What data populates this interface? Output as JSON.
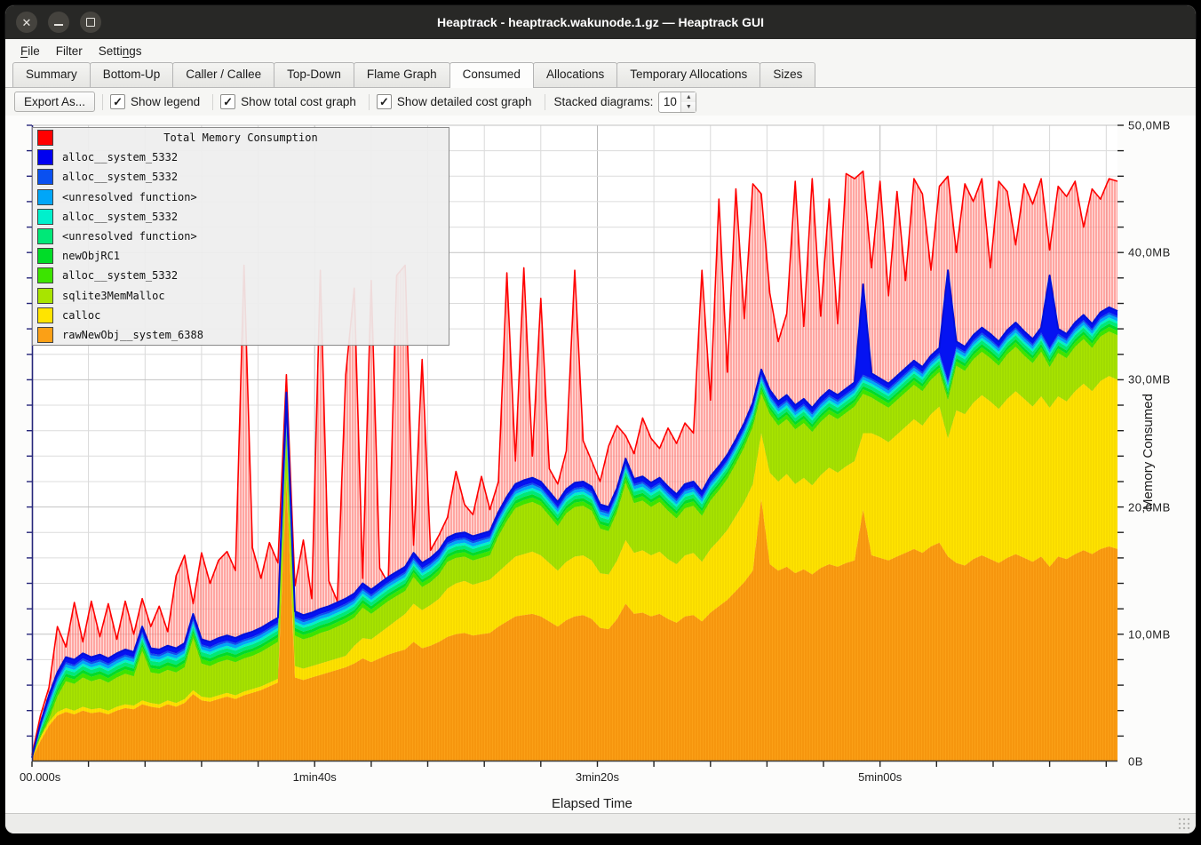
{
  "window": {
    "title": "Heaptrack - heaptrack.wakunode.1.gz — Heaptrack GUI",
    "buttons": [
      "close",
      "minimize",
      "maximize"
    ]
  },
  "menu": {
    "items": [
      {
        "label": "File",
        "accel_index": 0
      },
      {
        "label": "Filter",
        "accel_index": -1
      },
      {
        "label": "Settings",
        "accel_index": 5
      }
    ]
  },
  "tabs": [
    {
      "label": "Summary",
      "active": false
    },
    {
      "label": "Bottom-Up",
      "active": false
    },
    {
      "label": "Caller / Callee",
      "active": false
    },
    {
      "label": "Top-Down",
      "active": false
    },
    {
      "label": "Flame Graph",
      "active": false
    },
    {
      "label": "Consumed",
      "active": true
    },
    {
      "label": "Allocations",
      "active": false
    },
    {
      "label": "Temporary Allocations",
      "active": false
    },
    {
      "label": "Sizes",
      "active": false
    }
  ],
  "toolbar": {
    "export_label": "Export As...",
    "checkboxes": [
      {
        "label": "Show legend",
        "checked": true
      },
      {
        "label": "Show total cost graph",
        "checked": true
      },
      {
        "label": "Show detailed cost graph",
        "checked": true
      }
    ],
    "spinner_label": "Stacked diagrams:",
    "spinner_value": "10"
  },
  "chart_data": {
    "type": "area",
    "title": "Total Memory Consumption",
    "xlabel": "Elapsed Time",
    "ylabel": "Memory Consumed",
    "x_tick_labels": [
      "00.000s",
      "1min40s",
      "3min20s",
      "5min00s"
    ],
    "x_tick_seconds": [
      0,
      100,
      200,
      300
    ],
    "y_tick_labels": [
      "0B",
      "10,0MB",
      "20,0MB",
      "30,0MB",
      "40,0MB",
      "50,0MB"
    ],
    "y_tick_mb": [
      0,
      10,
      20,
      30,
      40,
      50
    ],
    "ylim_mb": [
      0,
      50
    ],
    "xlim_seconds": [
      0,
      384
    ],
    "minor_grid_seconds": 20,
    "minor_grid_mb": 2,
    "legend_position": "top-left",
    "grid": true,
    "unit": "MB",
    "t_step_seconds": 3,
    "legend": [
      {
        "label": "Total Memory Consumption",
        "color": "#ff0000",
        "is_title": true
      },
      {
        "label": "alloc__system_5332",
        "color": "#0000f0"
      },
      {
        "label": "alloc__system_5332",
        "color": "#0a50f0"
      },
      {
        "label": "<unresolved function>",
        "color": "#00a6f8"
      },
      {
        "label": "alloc__system_5332",
        "color": "#00f0cc"
      },
      {
        "label": "<unresolved function>",
        "color": "#00e878"
      },
      {
        "label": "newObjRC1",
        "color": "#00dc28"
      },
      {
        "label": "alloc__system_5332",
        "color": "#3ce400"
      },
      {
        "label": "sqlite3MemMalloc",
        "color": "#a8e400"
      },
      {
        "label": "calloc",
        "color": "#ffe400"
      },
      {
        "label": "rawNewObj__system_6388",
        "color": "#fba016"
      }
    ],
    "thin_bands": [
      {
        "name": "alloc__system_5332_green",
        "color": "#3ce400",
        "thickness": 0.35
      },
      {
        "name": "newObjRC1",
        "color": "#00dc28",
        "thickness": 0.25
      },
      {
        "name": "unresolved_spring",
        "color": "#00e878",
        "thickness": 0.3
      },
      {
        "name": "alloc__system_5332_cyan",
        "color": "#00f0cc",
        "thickness": 0.2
      },
      {
        "name": "unresolved_sky",
        "color": "#00a6f8",
        "thickness": 0.25
      },
      {
        "name": "alloc__system_5332_royal",
        "color": "#0a50f0",
        "thickness": 0.15
      }
    ],
    "top_band_color": "#0513f2",
    "top_line_color": "#0010d8",
    "red_line_color": "#ff0000",
    "series": {
      "orange_top_mb": [
        0.2,
        1.6,
        2.8,
        3.6,
        3.9,
        3.7,
        4.0,
        3.8,
        3.9,
        3.7,
        4.0,
        4.2,
        4.1,
        4.5,
        4.3,
        4.2,
        4.5,
        4.3,
        4.6,
        5.3,
        4.8,
        4.7,
        4.9,
        5.1,
        4.9,
        5.2,
        5.4,
        5.6,
        5.9,
        6.2,
        22.0,
        6.6,
        6.4,
        6.6,
        6.8,
        7.0,
        7.2,
        7.4,
        7.7,
        8.1,
        7.8,
        8.1,
        8.4,
        8.6,
        8.8,
        9.4,
        8.9,
        9.1,
        9.4,
        9.8,
        10.0,
        10.1,
        9.9,
        10.0,
        10.1,
        10.6,
        11.0,
        11.4,
        11.5,
        11.6,
        11.4,
        11.0,
        10.6,
        11.1,
        11.4,
        11.5,
        11.2,
        10.5,
        10.4,
        11.2,
        12.4,
        11.6,
        11.7,
        11.4,
        11.6,
        11.2,
        10.9,
        11.4,
        11.5,
        11.0,
        11.7,
        12.2,
        12.7,
        13.4,
        14.1,
        15.0,
        20.6,
        15.5,
        15.0,
        15.3,
        14.8,
        15.1,
        14.7,
        15.2,
        15.5,
        15.3,
        15.6,
        15.8,
        19.8,
        16.2,
        16.0,
        15.8,
        16.1,
        16.4,
        16.7,
        16.4,
        16.9,
        17.2,
        16.1,
        15.6,
        15.4,
        15.9,
        16.2,
        15.9,
        15.6,
        16.0,
        16.3,
        16.0,
        15.7,
        16.1,
        15.3,
        16.1,
        15.9,
        16.3,
        16.6,
        16.3,
        16.7,
        16.9,
        16.7
      ],
      "yellow_top_mb": [
        0.3,
        1.9,
        3.1,
        3.9,
        4.2,
        4.0,
        4.3,
        4.1,
        4.2,
        4.0,
        4.3,
        4.5,
        4.4,
        4.8,
        4.6,
        4.5,
        4.8,
        4.6,
        4.9,
        5.6,
        5.1,
        5.0,
        5.2,
        5.4,
        5.2,
        5.5,
        5.7,
        5.9,
        6.2,
        6.5,
        22.4,
        7.5,
        7.3,
        7.5,
        7.7,
        7.9,
        8.1,
        8.3,
        9.1,
        9.7,
        9.6,
        10.1,
        10.6,
        11.1,
        11.6,
        12.4,
        11.9,
        12.3,
        12.8,
        13.6,
        14.0,
        14.2,
        13.9,
        14.1,
        14.3,
        14.9,
        15.5,
        16.1,
        16.3,
        16.5,
        16.2,
        15.6,
        15.0,
        15.7,
        16.1,
        16.2,
        15.8,
        14.8,
        14.7,
        15.8,
        17.4,
        16.4,
        16.6,
        16.2,
        16.5,
        15.9,
        15.5,
        16.2,
        16.4,
        15.7,
        16.7,
        17.4,
        18.2,
        19.3,
        20.4,
        21.8,
        25.8,
        22.7,
        22.0,
        22.6,
        21.8,
        22.3,
        21.7,
        22.5,
        23.1,
        22.7,
        23.2,
        23.6,
        25.8,
        25.8,
        25.5,
        25.1,
        25.7,
        26.3,
        26.9,
        26.4,
        27.3,
        27.9,
        25.4,
        27.6,
        27.3,
        28.2,
        28.8,
        28.3,
        27.7,
        28.5,
        29.1,
        28.5,
        27.9,
        28.7,
        27.8,
        28.7,
        28.3,
        29.1,
        29.7,
        29.1,
        29.9,
        30.3,
        30.0
      ],
      "sqlite_top_mb": [
        0.4,
        1.9,
        3.3,
        5.1,
        6.3,
        6.1,
        6.6,
        6.3,
        6.5,
        6.2,
        6.6,
        6.9,
        6.7,
        8.7,
        7.0,
        6.9,
        7.2,
        7.0,
        7.4,
        9.7,
        7.7,
        7.5,
        7.8,
        8.0,
        7.8,
        8.1,
        8.3,
        8.6,
        9.0,
        9.4,
        25.2,
        9.9,
        9.6,
        9.8,
        10.1,
        10.3,
        10.6,
        10.9,
        11.3,
        12.1,
        11.6,
        12.1,
        12.6,
        13.0,
        13.4,
        14.5,
        13.7,
        14.1,
        14.7,
        15.7,
        16.0,
        16.1,
        15.8,
        16.0,
        16.2,
        17.7,
        18.9,
        19.9,
        20.2,
        20.4,
        20.1,
        19.3,
        18.5,
        19.5,
        20.0,
        20.1,
        19.7,
        18.3,
        18.1,
        19.6,
        21.9,
        20.3,
        20.5,
        20.0,
        20.4,
        19.7,
        19.1,
        19.9,
        20.1,
        19.3,
        20.5,
        21.3,
        22.2,
        23.4,
        24.7,
        26.3,
        28.9,
        27.3,
        26.4,
        26.9,
        26.1,
        26.6,
        25.9,
        26.7,
        27.3,
        26.9,
        27.4,
        27.9,
        28.9,
        28.6,
        28.2,
        27.8,
        28.4,
        29.0,
        29.6,
        29.1,
        30.0,
        30.6,
        28.4,
        31.1,
        30.7,
        31.6,
        32.2,
        31.7,
        31.1,
        32.0,
        32.6,
        31.9,
        31.3,
        32.2,
        31.0,
        32.1,
        31.7,
        32.6,
        33.2,
        32.5,
        33.4,
        33.8,
        33.5
      ],
      "stack_top_mb": [
        0.3,
        3.0,
        5.2,
        7.0,
        8.2,
        8.0,
        8.5,
        8.2,
        8.4,
        8.1,
        8.5,
        8.8,
        8.6,
        10.6,
        8.9,
        8.8,
        9.1,
        8.9,
        9.3,
        11.6,
        9.6,
        9.4,
        9.7,
        9.9,
        9.7,
        10.0,
        10.2,
        10.5,
        10.9,
        11.3,
        29.0,
        11.8,
        11.5,
        11.7,
        12.0,
        12.2,
        12.5,
        12.8,
        13.2,
        14.0,
        13.5,
        14.0,
        14.5,
        14.9,
        15.3,
        16.4,
        15.6,
        16.0,
        16.6,
        17.6,
        17.9,
        18.0,
        17.7,
        17.9,
        18.1,
        19.6,
        20.8,
        21.8,
        22.1,
        22.3,
        22.0,
        21.2,
        20.4,
        21.4,
        21.9,
        22.0,
        21.6,
        20.2,
        20.0,
        21.5,
        23.8,
        22.2,
        22.4,
        21.9,
        22.3,
        21.6,
        21.0,
        21.8,
        22.0,
        21.2,
        22.4,
        23.2,
        24.1,
        25.3,
        26.6,
        28.2,
        30.8,
        29.2,
        28.3,
        28.8,
        28.0,
        28.5,
        27.8,
        28.6,
        29.2,
        28.8,
        29.3,
        29.8,
        37.5,
        30.5,
        30.1,
        29.7,
        30.3,
        30.9,
        31.5,
        31.0,
        31.9,
        32.5,
        38.6,
        33.0,
        32.6,
        33.5,
        34.1,
        33.6,
        33.0,
        33.9,
        34.5,
        33.8,
        33.2,
        34.1,
        38.2,
        34.0,
        33.6,
        34.5,
        35.1,
        34.4,
        35.3,
        35.7,
        35.4
      ],
      "total_mb": [
        0.5,
        3.6,
        5.8,
        10.6,
        9.0,
        12.5,
        9.4,
        12.6,
        9.8,
        12.4,
        9.6,
        12.6,
        10.0,
        12.8,
        10.6,
        12.2,
        10.2,
        14.6,
        16.2,
        12.4,
        16.4,
        14.0,
        15.8,
        16.5,
        15.0,
        39.0,
        16.8,
        14.4,
        17.2,
        15.6,
        30.4,
        13.8,
        17.4,
        12.8,
        38.6,
        14.2,
        12.6,
        30.4,
        37.2,
        14.4,
        37.8,
        15.2,
        14.0,
        38.2,
        39.0,
        17.0,
        31.6,
        16.6,
        17.8,
        19.2,
        22.8,
        20.2,
        19.4,
        22.4,
        19.8,
        22.0,
        38.4,
        23.6,
        38.8,
        24.0,
        36.4,
        23.0,
        21.8,
        24.4,
        38.6,
        25.2,
        23.6,
        22.0,
        24.8,
        26.4,
        25.6,
        24.2,
        27.0,
        25.4,
        24.6,
        26.2,
        25.0,
        26.6,
        25.8,
        38.6,
        28.4,
        44.2,
        30.6,
        45.0,
        34.8,
        45.4,
        44.6,
        36.8,
        33.0,
        35.2,
        45.6,
        34.2,
        45.8,
        35.0,
        44.2,
        34.4,
        46.2,
        45.8,
        46.4,
        38.8,
        45.6,
        36.6,
        44.8,
        37.8,
        45.8,
        44.6,
        38.6,
        45.2,
        46.0,
        40.0,
        45.4,
        44.0,
        45.8,
        38.8,
        45.6,
        44.8,
        40.6,
        45.4,
        43.8,
        45.8,
        40.2,
        45.2,
        44.4,
        45.6,
        42.0,
        45.0,
        44.2,
        45.8,
        45.6
      ]
    }
  },
  "axes": {
    "x_axis_label": "Elapsed Time",
    "y_axis_label": "Memory Consumed"
  },
  "statusbar": {
    "text": ""
  }
}
